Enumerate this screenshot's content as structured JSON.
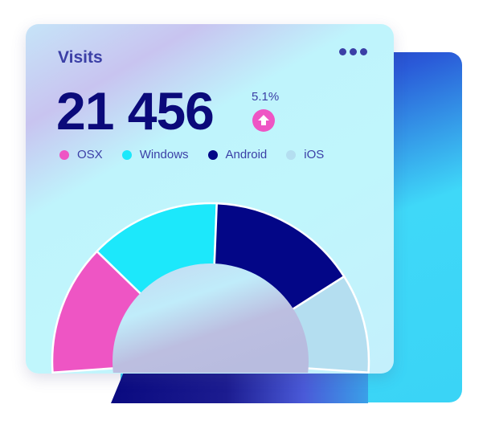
{
  "card": {
    "title": "Visits",
    "total": "21 456",
    "change": "5.1%",
    "trend_icon": "arrow-up-circle-icon",
    "menu_icon": "more-dots-icon"
  },
  "legend": [
    {
      "label": "OSX",
      "color": "#ee55c4"
    },
    {
      "label": "Windows",
      "color": "#1ce8fb"
    },
    {
      "label": "Android",
      "color": "#030687"
    },
    {
      "label": "iOS",
      "color": "#b4def0"
    }
  ],
  "chart_data": {
    "type": "pie",
    "variant": "half-donut",
    "categories": [
      "OSX",
      "Windows",
      "Android",
      "iOS"
    ],
    "values": [
      25.6,
      25.6,
      29.4,
      19.4
    ],
    "colors": [
      "#ee55c4",
      "#1ce8fb",
      "#030687",
      "#b4def0"
    ]
  }
}
